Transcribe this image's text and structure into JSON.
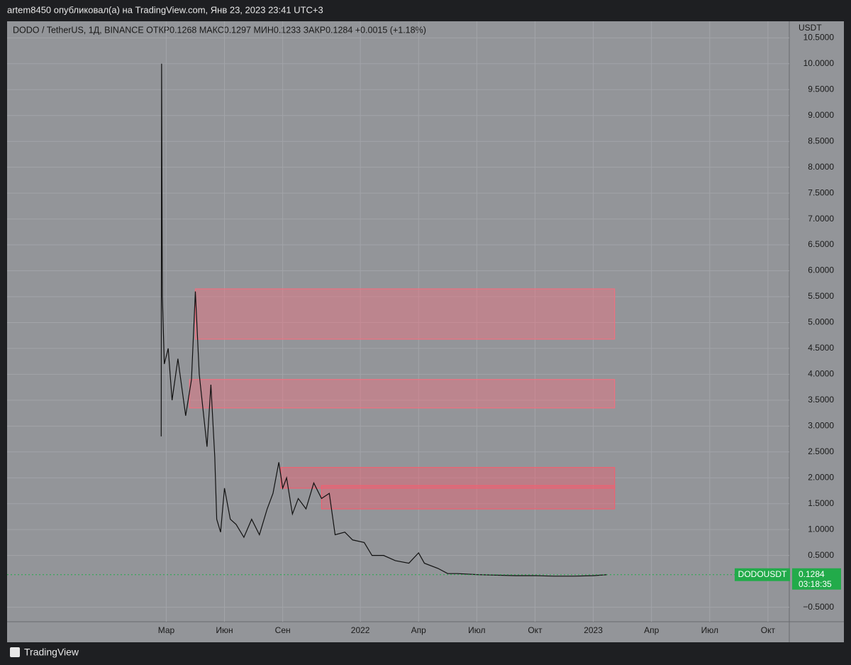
{
  "header": {
    "text": "artem8450 опубликовал(а) на TradingView.com, Янв 23, 2023 23:41 UTC+3"
  },
  "footer": {
    "brand": "TradingView"
  },
  "chart_data": {
    "type": "line",
    "title": "DODO / TetherUS, 1Д, BINANCE  ОТКР0.1268  МАКС0.1297  МИН0.1233  ЗАКР0.1284  +0.0015 (+1.18%)",
    "y_axis_label": "USDT",
    "color": "#111111",
    "grid": true,
    "x": [
      1.74,
      1.76,
      1.8,
      1.9,
      2.1,
      2.3,
      2.6,
      3.0,
      3.3,
      3.5,
      3.7,
      3.9,
      4.1,
      4.3,
      4.5,
      4.6,
      4.8,
      5.0,
      5.3,
      5.6,
      6.0,
      6.4,
      6.8,
      7.2,
      7.5,
      7.8,
      8.0,
      8.2,
      8.5,
      8.8,
      9.2,
      9.6,
      10.0,
      10.4,
      10.7,
      11.2,
      11.6,
      12.2,
      12.6,
      13.2,
      13.8,
      14.5,
      15.0,
      15.3,
      16.0,
      16.5,
      17.0,
      18.0,
      19.0,
      20.0,
      21.0,
      22.0,
      23.0,
      24.0,
      24.7
    ],
    "values": [
      2.8,
      10.0,
      5.5,
      4.2,
      4.5,
      3.5,
      4.3,
      3.2,
      3.9,
      5.6,
      4.0,
      3.3,
      2.6,
      3.8,
      2.4,
      1.2,
      0.95,
      1.8,
      1.2,
      1.1,
      0.85,
      1.2,
      0.9,
      1.4,
      1.7,
      2.3,
      1.8,
      2.0,
      1.3,
      1.6,
      1.4,
      1.9,
      1.6,
      1.7,
      0.9,
      0.95,
      0.8,
      0.75,
      0.5,
      0.5,
      0.4,
      0.35,
      0.55,
      0.35,
      0.25,
      0.15,
      0.15,
      0.13,
      0.12,
      0.11,
      0.11,
      0.1,
      0.1,
      0.11,
      0.128
    ],
    "zones": [
      {
        "x_from": 3.5,
        "x_to": 25.1,
        "y_from": 4.68,
        "y_to": 5.65,
        "color": "#f07080"
      },
      {
        "x_from": 3.2,
        "x_to": 25.1,
        "y_from": 3.35,
        "y_to": 3.9,
        "color": "#f07080"
      },
      {
        "x_from": 7.9,
        "x_to": 25.1,
        "y_from": 1.8,
        "y_to": 2.2,
        "color": "#f06070"
      },
      {
        "x_from": 10.0,
        "x_to": 25.1,
        "y_from": 1.4,
        "y_to": 1.85,
        "color": "#f06070"
      }
    ],
    "xlim": [
      -6.2,
      34.1
    ],
    "xticks": [
      {
        "value": 2,
        "label": "Мар"
      },
      {
        "value": 5,
        "label": "Июн"
      },
      {
        "value": 8,
        "label": "Сен"
      },
      {
        "value": 12,
        "label": "2022"
      },
      {
        "value": 15,
        "label": "Апр"
      },
      {
        "value": 18,
        "label": "Июл"
      },
      {
        "value": 21,
        "label": "Окт"
      },
      {
        "value": 24,
        "label": "2023"
      },
      {
        "value": 27,
        "label": "Апр"
      },
      {
        "value": 30,
        "label": "Июл"
      },
      {
        "value": 33,
        "label": "Окт"
      }
    ],
    "ylim": [
      -0.78,
      10.82
    ],
    "yticks": [
      {
        "value": -0.5,
        "label": "−0.5000"
      },
      {
        "value": 0.5,
        "label": "0.5000"
      },
      {
        "value": 1,
        "label": "1.0000"
      },
      {
        "value": 1.5,
        "label": "1.5000"
      },
      {
        "value": 2,
        "label": "2.0000"
      },
      {
        "value": 2.5,
        "label": "2.5000"
      },
      {
        "value": 3,
        "label": "3.0000"
      },
      {
        "value": 3.5,
        "label": "3.5000"
      },
      {
        "value": 4,
        "label": "4.0000"
      },
      {
        "value": 4.5,
        "label": "4.5000"
      },
      {
        "value": 5,
        "label": "5.0000"
      },
      {
        "value": 5.5,
        "label": "5.5000"
      },
      {
        "value": 6,
        "label": "6.0000"
      },
      {
        "value": 6.5,
        "label": "6.5000"
      },
      {
        "value": 7,
        "label": "7.0000"
      },
      {
        "value": 7.5,
        "label": "7.5000"
      },
      {
        "value": 8,
        "label": "8.0000"
      },
      {
        "value": 8.5,
        "label": "8.5000"
      },
      {
        "value": 9,
        "label": "9.0000"
      },
      {
        "value": 9.5,
        "label": "9.5000"
      },
      {
        "value": 10,
        "label": "10.0000"
      },
      {
        "value": 10.5,
        "label": "10.5000"
      }
    ],
    "last_price": {
      "symbol": "DODOUSDT",
      "value": 0.1284,
      "countdown": "03:18:35",
      "color": "#22ab4a"
    }
  }
}
